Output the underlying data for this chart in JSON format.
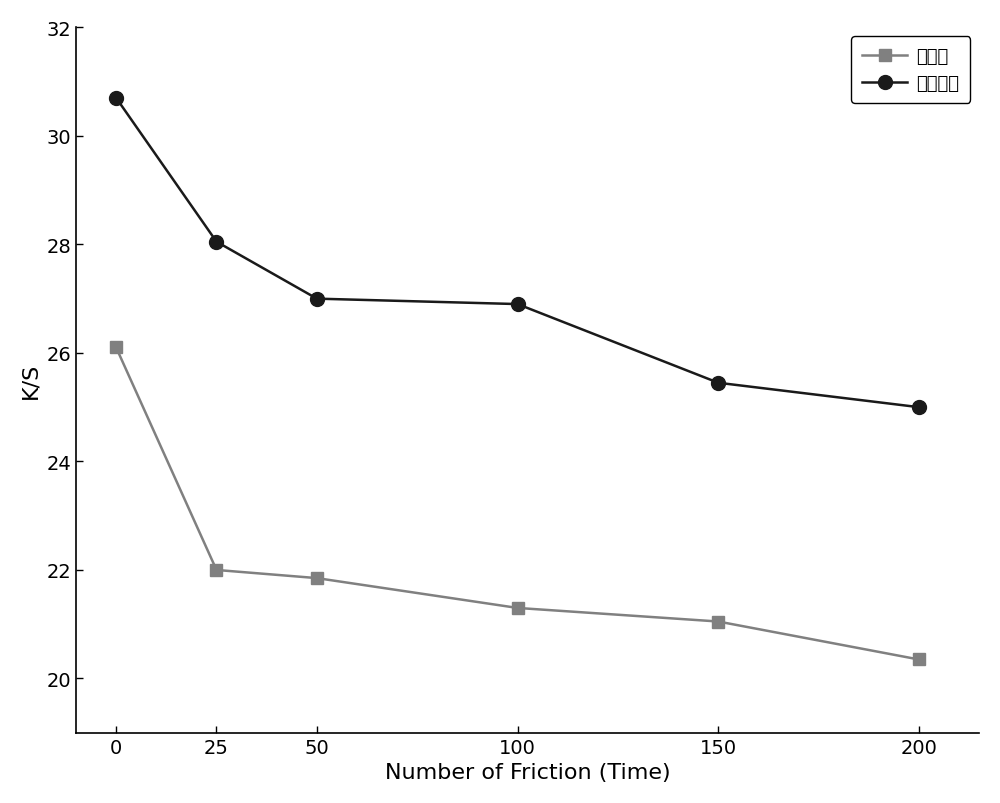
{
  "x": [
    0,
    25,
    50,
    100,
    150,
    200
  ],
  "series1_y": [
    26.1,
    22.0,
    21.85,
    21.3,
    21.05,
    20.35
  ],
  "series2_y": [
    30.7,
    28.05,
    27.0,
    26.9,
    25.45,
    25.0
  ],
  "series1_label": "原织物",
  "series2_label": "柔软整理",
  "series1_color": "#808080",
  "series2_color": "#1a1a1a",
  "xlabel": "Number of Friction (Time)",
  "ylabel": "K/S",
  "ylim": [
    19,
    32
  ],
  "xlim": [
    -10,
    215
  ],
  "yticks": [
    20,
    22,
    24,
    26,
    28,
    30,
    32
  ],
  "xticks": [
    0,
    25,
    50,
    100,
    150,
    200
  ],
  "linewidth": 1.8,
  "marker_size_square": 8,
  "marker_size_circle": 10,
  "xlabel_fontsize": 16,
  "ylabel_fontsize": 16,
  "tick_fontsize": 14,
  "legend_fontsize": 13,
  "background_color": "#ffffff"
}
